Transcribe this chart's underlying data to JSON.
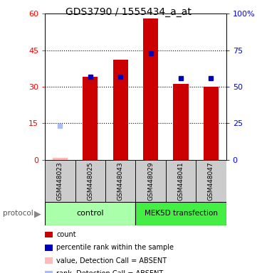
{
  "title": "GDS3790 / 1555434_a_at",
  "samples": [
    "GSM448023",
    "GSM448025",
    "GSM448043",
    "GSM448029",
    "GSM448041",
    "GSM448047"
  ],
  "count_values": [
    0.9,
    34.0,
    41.0,
    58.0,
    31.0,
    30.0
  ],
  "count_absent": [
    true,
    false,
    false,
    false,
    false,
    false
  ],
  "rank_values": [
    23.0,
    57.0,
    57.0,
    73.0,
    56.0,
    56.0
  ],
  "rank_absent": [
    true,
    false,
    false,
    false,
    false,
    false
  ],
  "ylim_left": [
    0,
    60
  ],
  "ylim_right": [
    0,
    100
  ],
  "yticks_left": [
    0,
    15,
    30,
    45,
    60
  ],
  "ytick_labels_right": [
    "0",
    "25",
    "50",
    "75",
    "100%"
  ],
  "yticks_right": [
    0,
    25,
    50,
    75,
    100
  ],
  "bar_width": 0.5,
  "bar_color_present": "#cc0000",
  "bar_color_absent": "#ffbbbb",
  "marker_color_present": "#0000bb",
  "marker_color_absent": "#aabbff",
  "control_color": "#aaffaa",
  "mek_color": "#44ee44",
  "label_bg": "#cccccc",
  "protocol_label": "protocol"
}
